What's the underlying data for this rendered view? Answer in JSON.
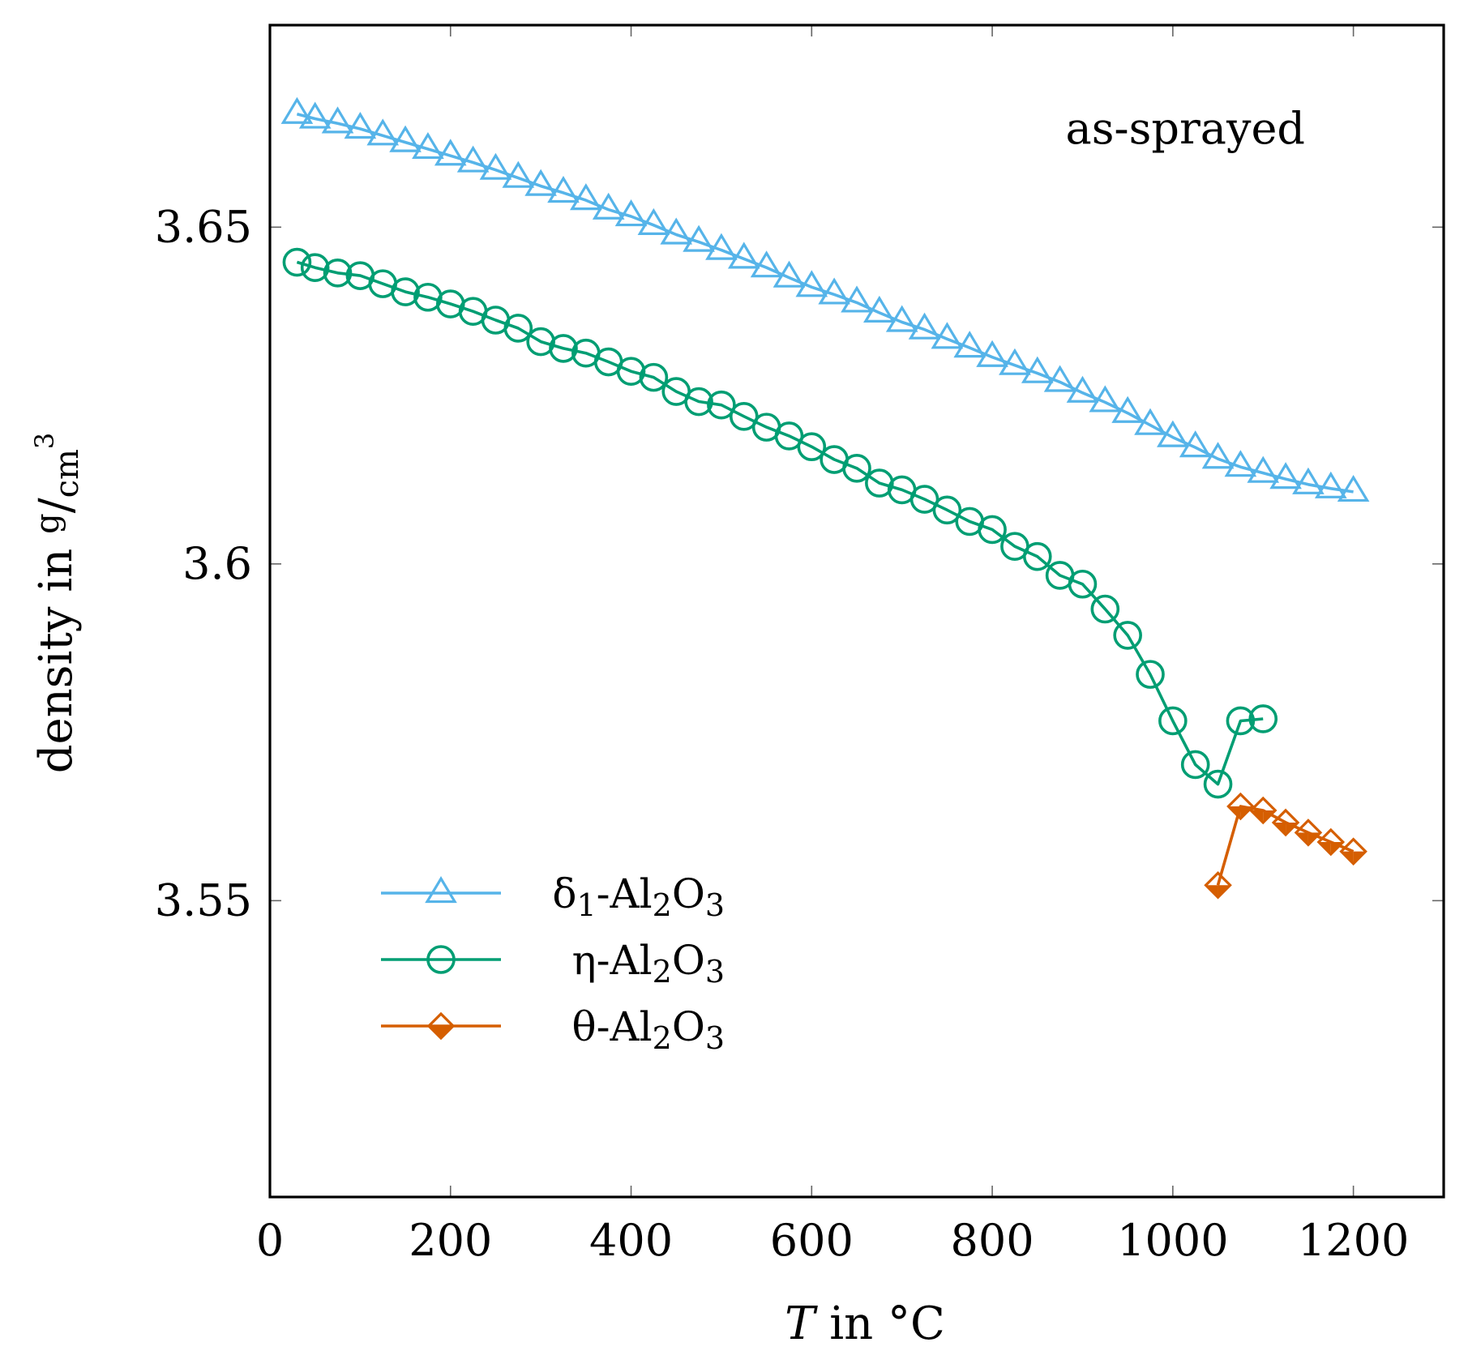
{
  "chart_data": {
    "type": "line",
    "annotation": "as-sprayed",
    "xlabel": {
      "italic": "T",
      "rest": " in °C"
    },
    "ylabel": {
      "main": "density in ",
      "num": "g",
      "slash": "/",
      "den": "cm",
      "sup": "3"
    },
    "xlim": [
      0,
      1300
    ],
    "ylim": [
      3.506,
      3.68
    ],
    "xticks": [
      0,
      200,
      400,
      600,
      800,
      1000,
      1200
    ],
    "xtick_labels": [
      "0",
      "200",
      "400",
      "600",
      "800",
      "1000",
      "1200"
    ],
    "yticks": [
      3.55,
      3.6,
      3.65
    ],
    "ytick_labels": [
      "3.55",
      "3.6",
      "3.65"
    ],
    "legend_position": "lower-left",
    "series": [
      {
        "id": "delta",
        "name": "δ1-Al2O3",
        "legend": {
          "pre": "δ",
          "sub1": "1",
          "mid": "-Al",
          "sub2": "2",
          "post": "O",
          "sub3": "3"
        },
        "color": "#56B4E9",
        "marker": "triangle",
        "x": [
          30,
          50,
          75,
          100,
          125,
          150,
          175,
          200,
          225,
          250,
          275,
          300,
          325,
          350,
          375,
          400,
          425,
          450,
          475,
          500,
          525,
          550,
          575,
          600,
          625,
          650,
          675,
          700,
          725,
          750,
          775,
          800,
          825,
          850,
          875,
          900,
          925,
          950,
          975,
          1000,
          1025,
          1050,
          1075,
          1100,
          1125,
          1150,
          1175,
          1200
        ],
        "y": [
          3.6668,
          3.6661,
          3.6654,
          3.6646,
          3.6636,
          3.6626,
          3.6616,
          3.6606,
          3.6596,
          3.6585,
          3.6573,
          3.6561,
          3.6551,
          3.654,
          3.6526,
          3.6516,
          3.6503,
          3.6489,
          3.6478,
          3.6466,
          3.6453,
          3.644,
          3.6425,
          3.6411,
          3.64,
          3.6388,
          3.6373,
          3.6359,
          3.6348,
          3.6334,
          3.6321,
          3.6307,
          3.6295,
          3.6283,
          3.627,
          3.6254,
          3.624,
          3.6224,
          3.6206,
          3.6188,
          3.6173,
          3.6156,
          3.6144,
          3.6135,
          3.6126,
          3.6118,
          3.6112,
          3.6107
        ]
      },
      {
        "id": "eta",
        "name": "η-Al2O3",
        "legend": {
          "pre": "η",
          "mid": "-Al",
          "sub2": "2",
          "post": "O",
          "sub3": "3"
        },
        "color": "#009E73",
        "marker": "circle",
        "x": [
          30,
          50,
          75,
          100,
          125,
          150,
          175,
          200,
          225,
          250,
          275,
          300,
          325,
          350,
          375,
          400,
          425,
          450,
          475,
          500,
          525,
          550,
          575,
          600,
          625,
          650,
          675,
          700,
          725,
          750,
          775,
          800,
          825,
          850,
          875,
          900,
          925,
          950,
          975,
          1000,
          1025,
          1050,
          1075,
          1100
        ],
        "y": [
          3.6448,
          3.644,
          3.6432,
          3.6428,
          3.6416,
          3.6404,
          3.6396,
          3.6386,
          3.6375,
          3.6362,
          3.635,
          3.633,
          3.632,
          3.6313,
          3.63,
          3.6286,
          3.6277,
          3.6256,
          3.6241,
          3.6236,
          3.6219,
          3.6203,
          3.619,
          3.6174,
          3.6155,
          3.6142,
          3.612,
          3.611,
          3.6096,
          3.608,
          3.6063,
          3.6051,
          3.6026,
          3.6011,
          3.5983,
          3.597,
          3.5933,
          3.5894,
          3.5836,
          3.5767,
          3.5702,
          3.5673,
          3.5767,
          3.577
        ]
      },
      {
        "id": "theta",
        "name": "θ-Al2O3",
        "legend": {
          "pre": "θ",
          "mid": "-Al",
          "sub2": "2",
          "post": "O",
          "sub3": "3"
        },
        "color": "#D55E00",
        "marker": "diamond",
        "x": [
          1050,
          1075,
          1100,
          1125,
          1150,
          1175,
          1200
        ],
        "y": [
          3.5523,
          3.564,
          3.5634,
          3.5616,
          3.5601,
          3.5587,
          3.5573
        ]
      }
    ]
  }
}
